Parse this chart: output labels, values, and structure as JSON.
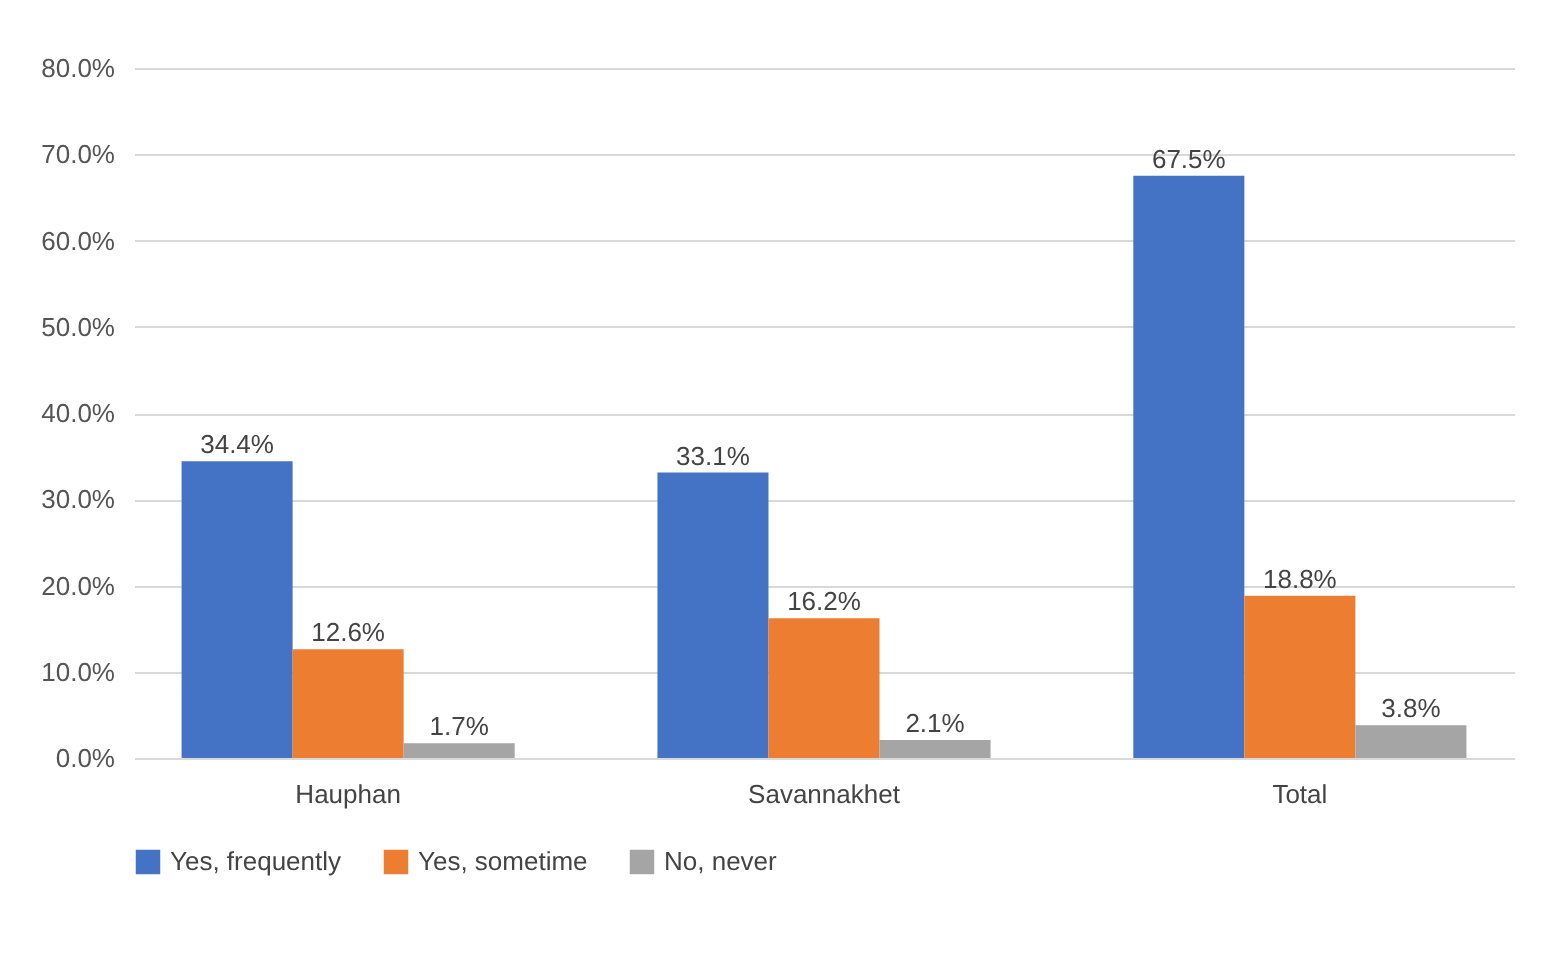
{
  "chart_data": {
    "type": "bar",
    "categories": [
      "Hauphan",
      "Savannakhet",
      "Total"
    ],
    "series": [
      {
        "name": "Yes, frequently",
        "color": "#4472c4",
        "values": [
          34.4,
          33.1,
          67.5
        ],
        "value_labels": [
          "34.4%",
          "33.1%",
          "67.5%"
        ]
      },
      {
        "name": "Yes, sometime",
        "color": "#ed7d31",
        "values": [
          12.6,
          16.2,
          18.8
        ],
        "value_labels": [
          "12.6%",
          "16.2%",
          "18.8%"
        ]
      },
      {
        "name": "No, never",
        "color": "#a5a5a5",
        "values": [
          1.7,
          2.1,
          3.8
        ],
        "value_labels": [
          "1.7%",
          "2.1%",
          "3.8%"
        ]
      }
    ],
    "ylim": [
      0,
      80
    ],
    "yticks": [
      {
        "value": 0,
        "label": "0.0%"
      },
      {
        "value": 10,
        "label": "10.0%"
      },
      {
        "value": 20,
        "label": "20.0%"
      },
      {
        "value": 30,
        "label": "30.0%"
      },
      {
        "value": 40,
        "label": "40.0%"
      },
      {
        "value": 50,
        "label": "50.0%"
      },
      {
        "value": 60,
        "label": "60.0%"
      },
      {
        "value": 70,
        "label": "70.0%"
      },
      {
        "value": 80,
        "label": "80.0%"
      }
    ],
    "grid": "y",
    "legend": "bottom"
  }
}
